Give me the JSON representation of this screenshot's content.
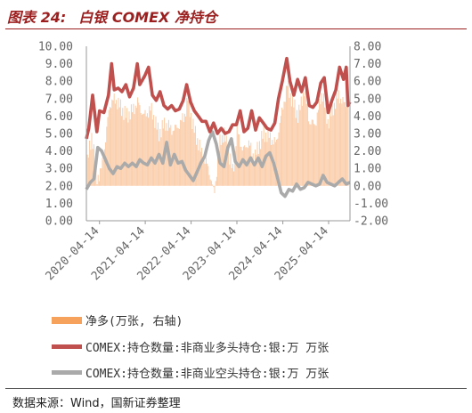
{
  "figure": {
    "label": "图表 24:",
    "title": "白银 COMEX 净持仓"
  },
  "source": "数据来源：Wind，国新证券整理",
  "chart_data": {
    "type": "line",
    "x_ticks": [
      "2020-04-14",
      "2021-04-14",
      "2022-04-14",
      "2023-04-14",
      "2024-04-14",
      "2025-04-14"
    ],
    "x_range": [
      "2020-01-01",
      "2025-10-01"
    ],
    "left_axis": {
      "ticks": [
        "10.00",
        "9.00",
        "8.00",
        "7.00",
        "6.00",
        "5.00",
        "4.00",
        "3.00",
        "2.00",
        "1.00",
        "0.00"
      ],
      "ylim": [
        0,
        10
      ]
    },
    "right_axis": {
      "ticks": [
        "8.00",
        "7.00",
        "6.00",
        "5.00",
        "4.00",
        "3.00",
        "2.00",
        "1.00",
        "0.00",
        "-1.00",
        "-2.00"
      ],
      "ylim": [
        -2,
        8
      ]
    },
    "legend_position": "bottom",
    "series": [
      {
        "name": "净多(万张, 右轴)",
        "kind": "area",
        "axis": "right",
        "color": "#f6a15c",
        "points": [
          [
            "2020-01-01",
            1.0
          ],
          [
            "2020-02-15",
            3.0
          ],
          [
            "2020-03-20",
            0.5
          ],
          [
            "2020-04-20",
            0.6
          ],
          [
            "2020-06-01",
            2.5
          ],
          [
            "2020-07-01",
            4.6
          ],
          [
            "2020-08-15",
            5.0
          ],
          [
            "2020-10-01",
            4.5
          ],
          [
            "2020-11-15",
            4.0
          ],
          [
            "2021-01-01",
            4.3
          ],
          [
            "2021-02-15",
            4.8
          ],
          [
            "2021-04-01",
            4.0
          ],
          [
            "2021-06-01",
            4.4
          ],
          [
            "2021-08-01",
            3.0
          ],
          [
            "2021-09-20",
            3.6
          ],
          [
            "2021-11-15",
            3.2
          ],
          [
            "2022-01-01",
            3.4
          ],
          [
            "2022-02-20",
            4.0
          ],
          [
            "2022-03-20",
            5.0
          ],
          [
            "2022-05-01",
            3.4
          ],
          [
            "2022-07-01",
            2.0
          ],
          [
            "2022-09-01",
            1.0
          ],
          [
            "2022-10-15",
            -0.5
          ],
          [
            "2022-12-01",
            2.6
          ],
          [
            "2023-01-01",
            3.0
          ],
          [
            "2023-02-20",
            1.5
          ],
          [
            "2023-03-15",
            0.8
          ],
          [
            "2023-04-15",
            3.2
          ],
          [
            "2023-06-01",
            2.0
          ],
          [
            "2023-07-15",
            2.5
          ],
          [
            "2023-09-01",
            1.6
          ],
          [
            "2023-10-10",
            2.4
          ],
          [
            "2023-11-15",
            3.0
          ],
          [
            "2024-01-01",
            2.8
          ],
          [
            "2024-02-20",
            2.4
          ],
          [
            "2024-04-01",
            4.0
          ],
          [
            "2024-05-20",
            5.8
          ],
          [
            "2024-07-01",
            4.8
          ],
          [
            "2024-08-15",
            4.0
          ],
          [
            "2024-10-01",
            5.5
          ],
          [
            "2024-11-15",
            3.6
          ],
          [
            "2025-01-01",
            3.6
          ],
          [
            "2025-02-20",
            5.4
          ],
          [
            "2025-04-10",
            3.6
          ],
          [
            "2025-05-15",
            4.4
          ],
          [
            "2025-07-01",
            5.2
          ],
          [
            "2025-08-15",
            4.7
          ],
          [
            "2025-09-20",
            4.8
          ]
        ]
      },
      {
        "name": "COMEX:持仓数量:非商业多头持仓:银:万 万张",
        "kind": "line",
        "axis": "left",
        "color": "#c0504d",
        "points": [
          [
            "2020-01-01",
            4.7
          ],
          [
            "2020-01-20",
            5.3
          ],
          [
            "2020-02-20",
            7.2
          ],
          [
            "2020-03-10",
            6.0
          ],
          [
            "2020-03-25",
            5.1
          ],
          [
            "2020-04-15",
            6.3
          ],
          [
            "2020-05-20",
            6.2
          ],
          [
            "2020-06-25",
            7.2
          ],
          [
            "2020-07-20",
            9.0
          ],
          [
            "2020-08-10",
            7.5
          ],
          [
            "2020-09-10",
            7.6
          ],
          [
            "2020-10-10",
            7.4
          ],
          [
            "2020-11-10",
            7.8
          ],
          [
            "2020-12-10",
            7.1
          ],
          [
            "2021-01-10",
            7.6
          ],
          [
            "2021-02-10",
            9.0
          ],
          [
            "2021-03-01",
            7.8
          ],
          [
            "2021-04-10",
            8.3
          ],
          [
            "2021-05-10",
            8.8
          ],
          [
            "2021-06-10",
            7.2
          ],
          [
            "2021-07-10",
            6.9
          ],
          [
            "2021-08-10",
            7.4
          ],
          [
            "2021-09-10",
            6.6
          ],
          [
            "2021-10-10",
            6.4
          ],
          [
            "2021-11-10",
            6.6
          ],
          [
            "2021-12-10",
            6.3
          ],
          [
            "2022-01-10",
            6.4
          ],
          [
            "2022-02-10",
            6.9
          ],
          [
            "2022-03-10",
            7.8
          ],
          [
            "2022-04-10",
            6.8
          ],
          [
            "2022-05-10",
            6.3
          ],
          [
            "2022-06-10",
            6.0
          ],
          [
            "2022-07-10",
            5.7
          ],
          [
            "2022-08-10",
            5.7
          ],
          [
            "2022-09-10",
            5.1
          ],
          [
            "2022-10-10",
            5.6
          ],
          [
            "2022-11-10",
            5.0
          ],
          [
            "2022-12-10",
            5.3
          ],
          [
            "2023-01-10",
            5.0
          ],
          [
            "2023-02-10",
            5.1
          ],
          [
            "2023-03-10",
            5.5
          ],
          [
            "2023-04-10",
            5.5
          ],
          [
            "2023-05-10",
            6.3
          ],
          [
            "2023-06-10",
            5.1
          ],
          [
            "2023-07-10",
            5.3
          ],
          [
            "2023-08-10",
            6.3
          ],
          [
            "2023-09-10",
            5.2
          ],
          [
            "2023-10-10",
            5.9
          ],
          [
            "2023-11-10",
            5.6
          ],
          [
            "2023-12-10",
            5.3
          ],
          [
            "2024-01-10",
            5.2
          ],
          [
            "2024-02-10",
            5.6
          ],
          [
            "2024-03-10",
            7.0
          ],
          [
            "2024-04-10",
            8.0
          ],
          [
            "2024-05-15",
            9.3
          ],
          [
            "2024-06-10",
            8.0
          ],
          [
            "2024-07-10",
            7.2
          ],
          [
            "2024-08-10",
            8.1
          ],
          [
            "2024-09-10",
            7.4
          ],
          [
            "2024-10-10",
            8.2
          ],
          [
            "2024-11-10",
            6.6
          ],
          [
            "2024-12-10",
            6.5
          ],
          [
            "2025-01-10",
            6.8
          ],
          [
            "2025-02-10",
            7.9
          ],
          [
            "2025-03-10",
            8.2
          ],
          [
            "2025-04-10",
            6.2
          ],
          [
            "2025-05-10",
            6.9
          ],
          [
            "2025-06-10",
            7.5
          ],
          [
            "2025-07-10",
            8.8
          ],
          [
            "2025-08-10",
            8.1
          ],
          [
            "2025-09-01",
            8.8
          ],
          [
            "2025-09-15",
            6.6
          ],
          [
            "2025-10-01",
            6.8
          ]
        ]
      },
      {
        "name": "COMEX:持仓数量:非商业空头持仓:银:万 万张",
        "kind": "line",
        "axis": "left",
        "color": "#aaaaaa",
        "points": [
          [
            "2020-01-01",
            1.8
          ],
          [
            "2020-02-01",
            2.2
          ],
          [
            "2020-03-01",
            2.4
          ],
          [
            "2020-04-01",
            4.2
          ],
          [
            "2020-05-01",
            4.0
          ],
          [
            "2020-06-01",
            3.5
          ],
          [
            "2020-07-01",
            3.0
          ],
          [
            "2020-08-01",
            2.7
          ],
          [
            "2020-09-01",
            3.1
          ],
          [
            "2020-10-01",
            3.0
          ],
          [
            "2020-11-01",
            3.3
          ],
          [
            "2020-12-01",
            3.1
          ],
          [
            "2021-01-01",
            3.3
          ],
          [
            "2021-02-01",
            3.1
          ],
          [
            "2021-03-01",
            3.5
          ],
          [
            "2021-04-01",
            3.3
          ],
          [
            "2021-05-01",
            3.2
          ],
          [
            "2021-06-01",
            3.6
          ],
          [
            "2021-07-01",
            3.3
          ],
          [
            "2021-08-01",
            3.8
          ],
          [
            "2021-09-01",
            3.3
          ],
          [
            "2021-10-01",
            4.5
          ],
          [
            "2021-11-01",
            3.2
          ],
          [
            "2021-12-01",
            3.8
          ],
          [
            "2022-01-01",
            3.3
          ],
          [
            "2022-02-01",
            3.4
          ],
          [
            "2022-03-01",
            2.9
          ],
          [
            "2022-04-01",
            2.6
          ],
          [
            "2022-05-01",
            2.3
          ],
          [
            "2022-06-01",
            2.8
          ],
          [
            "2022-07-01",
            3.3
          ],
          [
            "2022-08-01",
            3.7
          ],
          [
            "2022-09-01",
            4.6
          ],
          [
            "2022-10-01",
            5.1
          ],
          [
            "2022-11-01",
            4.4
          ],
          [
            "2022-12-01",
            3.3
          ],
          [
            "2023-01-01",
            3.1
          ],
          [
            "2023-02-01",
            4.2
          ],
          [
            "2023-03-01",
            4.7
          ],
          [
            "2023-04-01",
            3.4
          ],
          [
            "2023-05-01",
            3.1
          ],
          [
            "2023-06-01",
            3.5
          ],
          [
            "2023-07-01",
            3.2
          ],
          [
            "2023-08-01",
            3.6
          ],
          [
            "2023-09-01",
            3.2
          ],
          [
            "2023-10-01",
            3.6
          ],
          [
            "2023-11-01",
            3.1
          ],
          [
            "2023-12-01",
            3.7
          ],
          [
            "2024-01-01",
            3.9
          ],
          [
            "2024-02-01",
            3.3
          ],
          [
            "2024-03-01",
            2.5
          ],
          [
            "2024-04-01",
            1.6
          ],
          [
            "2024-05-01",
            1.4
          ],
          [
            "2024-06-01",
            1.8
          ],
          [
            "2024-07-01",
            1.7
          ],
          [
            "2024-08-01",
            2.1
          ],
          [
            "2024-09-01",
            1.8
          ],
          [
            "2024-10-01",
            1.9
          ],
          [
            "2024-11-01",
            2.2
          ],
          [
            "2024-12-01",
            2.1
          ],
          [
            "2025-01-01",
            2.0
          ],
          [
            "2025-02-01",
            2.1
          ],
          [
            "2025-03-01",
            2.6
          ],
          [
            "2025-04-01",
            2.2
          ],
          [
            "2025-05-01",
            2.1
          ],
          [
            "2025-06-01",
            2.0
          ],
          [
            "2025-07-01",
            2.2
          ],
          [
            "2025-08-01",
            2.4
          ],
          [
            "2025-09-01",
            2.1
          ],
          [
            "2025-10-01",
            2.2
          ]
        ]
      }
    ]
  }
}
